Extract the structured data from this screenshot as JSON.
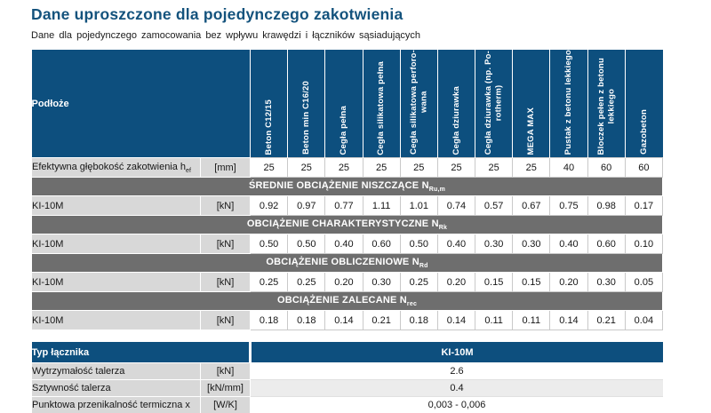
{
  "page": {
    "title": "Dane uproszczone dla pojedynczego zakotwienia",
    "subtitle": "Dane dla pojedynczego  zamocowania  bez wpływu  krawędzi  i łączników  sąsiadujących"
  },
  "colors": {
    "header_blue": "#0d4f7e",
    "section_gray": "#6e6e6e",
    "label_gray": "#d8d8d8",
    "alt_row": "#ececec",
    "title_blue": "#14537d",
    "value_border": "#c9c9c9"
  },
  "main_table": {
    "corner_label": "Podłoże",
    "columns": [
      "Beton C12/15",
      "Beton min C16/20",
      "Cegła pełna",
      "Cegła silikatowa pełna",
      "Cegła silikatowa perforo-\nwana",
      "Cegła dziurawka",
      "Cegła dziurawka (np. Po-\nrotherm)",
      "MEGA MAX",
      "Pustak z betonu lekkiego",
      "Bloczek pełen z betonu\nlekkiego",
      "Gazobeton"
    ],
    "depth_row": {
      "label": "Efektywna  głębokość  zakotwienia  h",
      "label_sub": "ef",
      "unit": "[mm]",
      "values": [
        "25",
        "25",
        "25",
        "25",
        "25",
        "25",
        "25",
        "25",
        "40",
        "60",
        "60"
      ]
    },
    "sections": [
      {
        "title": "ŚREDNIE OBCIĄŻENIE NISZCZĄCE N",
        "title_sub": "Ru,m",
        "row_label": "KI-10M",
        "unit": "[kN]",
        "values": [
          "0.92",
          "0.97",
          "0.77",
          "1.11",
          "1.01",
          "0.74",
          "0.57",
          "0.67",
          "0.75",
          "0.98",
          "0.17"
        ]
      },
      {
        "title": "OBCIĄŻENIE CHARAKTERYSTYCZNE N",
        "title_sub": "Rk",
        "row_label": "KI-10M",
        "unit": "[kN]",
        "values": [
          "0.50",
          "0.50",
          "0.40",
          "0.60",
          "0.50",
          "0.40",
          "0.30",
          "0.30",
          "0.40",
          "0.60",
          "0.10"
        ]
      },
      {
        "title": "OBCIĄŻENIE OBLICZENIOWE N",
        "title_sub": "Rd",
        "row_label": "KI-10M",
        "unit": "[kN]",
        "values": [
          "0.25",
          "0.25",
          "0.20",
          "0.30",
          "0.25",
          "0.20",
          "0.15",
          "0.15",
          "0.20",
          "0.30",
          "0.05"
        ]
      },
      {
        "title": "OBCIĄŻENIE ZALECANE N",
        "title_sub": "rec",
        "row_label": "KI-10M",
        "unit": "[kN]",
        "values": [
          "0.18",
          "0.18",
          "0.14",
          "0.21",
          "0.18",
          "0.14",
          "0.11",
          "0.11",
          "0.14",
          "0.21",
          "0.04"
        ]
      }
    ]
  },
  "connector_table": {
    "header_label": "Typ łącznika",
    "header_value": "KI-10M",
    "rows": [
      {
        "label": "Wytrzymałość  talerza",
        "unit": "[kN]",
        "value": "2.6"
      },
      {
        "label": "Sztywność  talerza",
        "unit": "[kN/mm]",
        "value": "0.4"
      },
      {
        "label": "Punktowa  przenikalność  termiczna  x",
        "unit": "[W/K]",
        "value": "0,003 - 0,006"
      }
    ]
  }
}
